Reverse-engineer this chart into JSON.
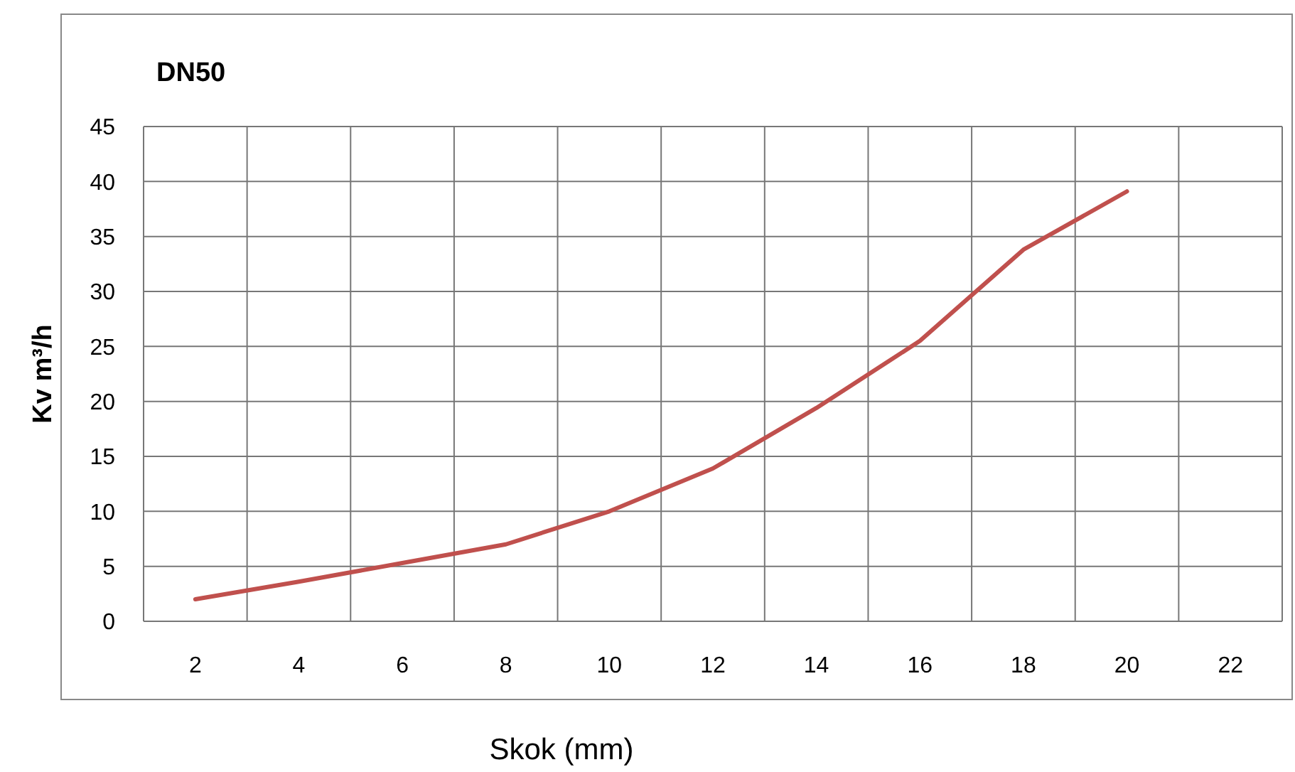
{
  "chart_data": {
    "type": "line",
    "title": "DN50",
    "xlabel": "Skok (mm)",
    "ylabel": "Kv m³/h",
    "categories": [
      "2",
      "4",
      "6",
      "8",
      "10",
      "12",
      "14",
      "16",
      "18",
      "20",
      "22"
    ],
    "series": [
      {
        "color": "#c0504d",
        "values": [
          2,
          3.6,
          5.3,
          7,
          10,
          13.9,
          19.4,
          25.5,
          33.8,
          39.1,
          null
        ]
      }
    ],
    "ylim": [
      0,
      45
    ],
    "yticks": [
      0,
      5,
      10,
      15,
      20,
      25,
      30,
      35,
      40,
      45
    ],
    "grid": true,
    "marker": "none",
    "line_style": "solid"
  }
}
